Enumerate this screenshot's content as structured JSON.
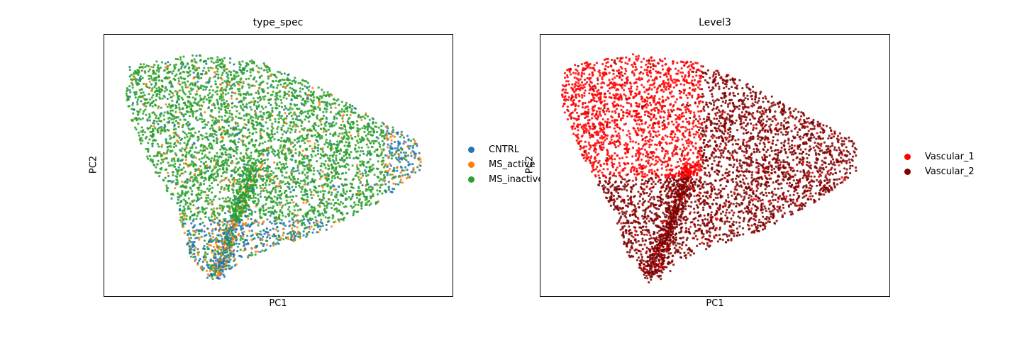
{
  "chart_data": [
    {
      "type": "scatter",
      "title": "type_spec",
      "xlabel": "PC1",
      "ylabel": "PC2",
      "xticks": false,
      "yticks": false,
      "grid": false,
      "legend_position": "right, outside axes",
      "series": [
        {
          "name": "CNTRL",
          "color": "#1f77b4"
        },
        {
          "name": "MS_active",
          "color": "#ff7f0e"
        },
        {
          "name": "MS_inactive",
          "color": "#2ca02c"
        }
      ]
    },
    {
      "type": "scatter",
      "title": "Level3",
      "xlabel": "PC1",
      "ylabel": "PC2",
      "xticks": false,
      "yticks": false,
      "grid": false,
      "legend_position": "right, outside axes",
      "series": [
        {
          "name": "Vascular_1",
          "color": "#ff0000"
        },
        {
          "name": "Vascular_2",
          "color": "#800000"
        }
      ]
    }
  ]
}
